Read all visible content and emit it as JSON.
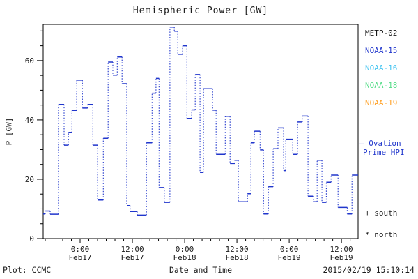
{
  "colors": {
    "axis": "#000000",
    "text": "#1c1c1c",
    "hpi_line": "#2036cc"
  },
  "footer": {
    "left": "Plot: CCMC",
    "right": "2015/02/19 15:10:14"
  },
  "legend": {
    "items": [
      {
        "label": "METP-02",
        "color": "#111111"
      },
      {
        "label": "NOAA-15",
        "color": "#2036cc"
      },
      {
        "label": "NOAA-16",
        "color": "#44c4f0"
      },
      {
        "label": "NOAA-18",
        "color": "#55dd88"
      },
      {
        "label": "NOAA-19",
        "color": "#ff9f22"
      }
    ],
    "ovation_line1": "— Ovation",
    "ovation_line2": "Prime HPI",
    "ovation_color": "#2036cc",
    "marker_south": "+ south",
    "marker_north": "* north"
  },
  "chart_data": {
    "type": "line",
    "subtype": "step",
    "title": "Hemispheric Power [GW]",
    "ylabel": "P [GW]",
    "xlabel": "Date and Time",
    "ylim": [
      0,
      72.2
    ],
    "yticks_major": [
      0,
      20,
      40,
      60
    ],
    "ytick_minor_step": 5,
    "x_span_hours": 72.3,
    "x_start_label": "Feb16 ~15:30",
    "xticks": [
      {
        "h": 8.48,
        "time": "0:00",
        "date": "Feb17"
      },
      {
        "h": 20.48,
        "time": "12:00",
        "date": "Feb17"
      },
      {
        "h": 32.48,
        "time": "0:00",
        "date": "Feb18"
      },
      {
        "h": 44.48,
        "time": "12:00",
        "date": "Feb18"
      },
      {
        "h": 56.48,
        "time": "0:00",
        "date": "Feb19"
      },
      {
        "h": 68.48,
        "time": "12:00",
        "date": "Feb19"
      }
    ],
    "x_minor_step_hours": 2,
    "x_minor_offset_hours": 0.48,
    "line_color": "#2036cc",
    "segments_note": "[start_hour, end_hour, power_GW] measured from plot left edge",
    "segments": [
      [
        0.0,
        0.5,
        8.3
      ],
      [
        0.5,
        1.6,
        9.3
      ],
      [
        1.6,
        3.5,
        8.2
      ],
      [
        3.5,
        4.8,
        45.2
      ],
      [
        4.8,
        5.8,
        31.5
      ],
      [
        5.8,
        6.6,
        35.8
      ],
      [
        6.6,
        7.7,
        43.2
      ],
      [
        7.7,
        9.0,
        53.4
      ],
      [
        9.0,
        10.2,
        44.0
      ],
      [
        10.2,
        11.4,
        45.2
      ],
      [
        11.4,
        12.5,
        31.5
      ],
      [
        12.5,
        13.8,
        13.0
      ],
      [
        13.8,
        14.9,
        33.8
      ],
      [
        14.9,
        16.0,
        59.5
      ],
      [
        16.0,
        17.0,
        55.1
      ],
      [
        17.0,
        18.1,
        61.2
      ],
      [
        18.1,
        19.2,
        52.2
      ],
      [
        19.2,
        20.0,
        11.1
      ],
      [
        20.0,
        21.6,
        9.1
      ],
      [
        21.6,
        23.7,
        7.9
      ],
      [
        23.7,
        25.0,
        32.3
      ],
      [
        25.0,
        25.9,
        49.0
      ],
      [
        25.9,
        26.6,
        54.0
      ],
      [
        26.6,
        27.8,
        17.2
      ],
      [
        27.8,
        29.1,
        12.2
      ],
      [
        29.1,
        30.1,
        71.3
      ],
      [
        30.1,
        30.9,
        69.9
      ],
      [
        30.9,
        32.0,
        62.1
      ],
      [
        32.0,
        33.0,
        65.0
      ],
      [
        33.0,
        34.1,
        40.5
      ],
      [
        34.1,
        34.9,
        43.4
      ],
      [
        34.9,
        36.0,
        55.3
      ],
      [
        36.0,
        36.8,
        22.3
      ],
      [
        36.8,
        38.9,
        50.5
      ],
      [
        38.9,
        39.7,
        43.3
      ],
      [
        39.7,
        41.8,
        28.4
      ],
      [
        41.8,
        42.9,
        41.2
      ],
      [
        42.9,
        44.0,
        25.3
      ],
      [
        44.0,
        44.8,
        26.4
      ],
      [
        44.8,
        46.9,
        12.4
      ],
      [
        46.9,
        47.7,
        15.1
      ],
      [
        47.7,
        48.5,
        32.3
      ],
      [
        48.5,
        49.8,
        36.2
      ],
      [
        49.8,
        50.6,
        29.9
      ],
      [
        50.6,
        51.7,
        8.3
      ],
      [
        51.7,
        52.8,
        17.5
      ],
      [
        52.8,
        53.9,
        30.3
      ],
      [
        53.9,
        55.2,
        37.3
      ],
      [
        55.2,
        55.7,
        22.9
      ],
      [
        55.7,
        57.3,
        33.5
      ],
      [
        57.3,
        58.4,
        28.4
      ],
      [
        58.4,
        59.5,
        39.3
      ],
      [
        59.5,
        60.8,
        41.3
      ],
      [
        60.8,
        62.1,
        14.3
      ],
      [
        62.1,
        62.9,
        12.4
      ],
      [
        62.9,
        64.0,
        26.4
      ],
      [
        64.0,
        65.0,
        12.2
      ],
      [
        65.0,
        66.1,
        19.0
      ],
      [
        66.1,
        67.7,
        21.4
      ],
      [
        67.7,
        69.8,
        10.5
      ],
      [
        69.8,
        70.9,
        8.3
      ],
      [
        70.9,
        72.3,
        21.4
      ]
    ]
  }
}
